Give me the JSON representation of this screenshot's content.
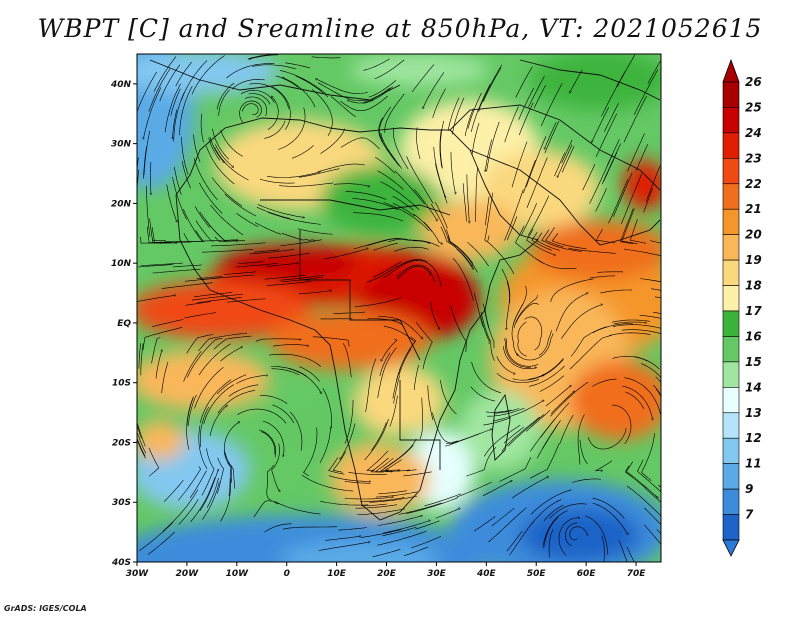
{
  "title": "WBPT [C] and Sreamline at 850hPa, VT: 2021052615",
  "credit": "GrADS: IGES/COLA",
  "map": {
    "lon_range": [
      -30,
      75
    ],
    "lat_range": [
      -40,
      45
    ],
    "lon_ticks": [
      {
        "value": -30,
        "label": "30W"
      },
      {
        "value": -20,
        "label": "20W"
      },
      {
        "value": -10,
        "label": "10W"
      },
      {
        "value": 0,
        "label": "0"
      },
      {
        "value": 10,
        "label": "10E"
      },
      {
        "value": 20,
        "label": "20E"
      },
      {
        "value": 30,
        "label": "30E"
      },
      {
        "value": 40,
        "label": "40E"
      },
      {
        "value": 50,
        "label": "50E"
      },
      {
        "value": 60,
        "label": "60E"
      },
      {
        "value": 70,
        "label": "70E"
      }
    ],
    "lat_ticks": [
      {
        "value": 40,
        "label": "40N"
      },
      {
        "value": 30,
        "label": "30N"
      },
      {
        "value": 20,
        "label": "20N"
      },
      {
        "value": 10,
        "label": "10N"
      },
      {
        "value": 0,
        "label": "EQ"
      },
      {
        "value": -10,
        "label": "10S"
      },
      {
        "value": -20,
        "label": "20S"
      },
      {
        "value": -30,
        "label": "30S"
      },
      {
        "value": -40,
        "label": "40S"
      }
    ]
  },
  "colorbar": {
    "levels": [
      {
        "label": "26",
        "color": "#a80000"
      },
      {
        "label": "25",
        "color": "#c80000"
      },
      {
        "label": "24",
        "color": "#e01e00"
      },
      {
        "label": "23",
        "color": "#f04a14"
      },
      {
        "label": "22",
        "color": "#f06e1c"
      },
      {
        "label": "21",
        "color": "#f5962a"
      },
      {
        "label": "20",
        "color": "#f9b75a"
      },
      {
        "label": "19",
        "color": "#fad87e"
      },
      {
        "label": "18",
        "color": "#fdf0a8"
      },
      {
        "label": "17",
        "color": "#3cb43c"
      },
      {
        "label": "16",
        "color": "#64c864"
      },
      {
        "label": "15",
        "color": "#a0e6a0"
      },
      {
        "label": "14",
        "color": "#e6ffff"
      },
      {
        "label": "13",
        "color": "#b4e4fa"
      },
      {
        "label": "12",
        "color": "#82c8f0"
      },
      {
        "label": "11",
        "color": "#5aaae6"
      },
      {
        "label": "9",
        "color": "#3c8cdc"
      },
      {
        "label": "7",
        "color": "#1e64c8"
      }
    ]
  }
}
